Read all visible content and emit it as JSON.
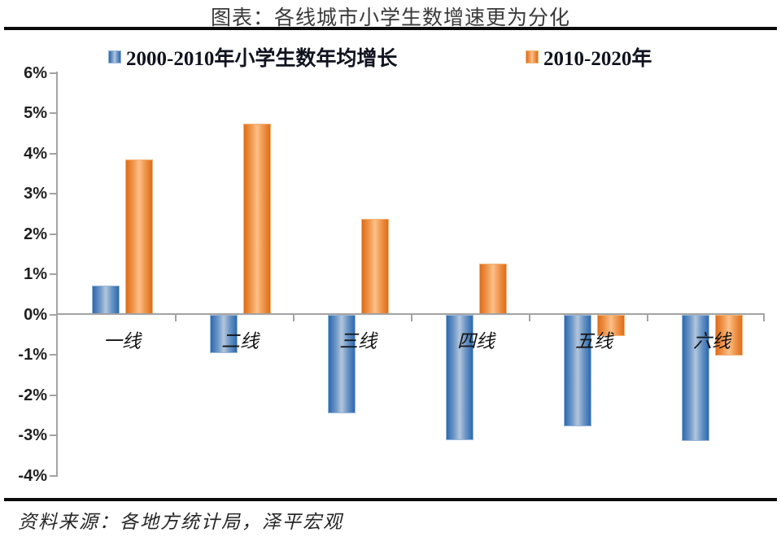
{
  "title": "图表：各线城市小学生数增速更为分化",
  "source": "资料来源：各地方统计局，泽平宏观",
  "legend": [
    {
      "label": "2000-2010年小学生数年均增长",
      "color": "#2c69b0"
    },
    {
      "label": "2010-2020年",
      "color": "#dd6d1a"
    }
  ],
  "colors": {
    "blue_edge": "#2c69b0",
    "blue_center": "#b3c6dc",
    "orange_edge": "#dd6d1a",
    "orange_center": "#fcc08b",
    "axis_gray": "#a3a3a3",
    "divider_black": "#0b0b0b"
  },
  "chart_data": {
    "type": "bar",
    "title": "图表：各线城市小学生数增速更为分化",
    "categories": [
      "一线",
      "二线",
      "三线",
      "四线",
      "五线",
      "六线"
    ],
    "series": [
      {
        "name": "2000-2010年小学生数年均增长",
        "color": "#2c69b0",
        "values": [
          0.73,
          -0.95,
          -2.45,
          -3.12,
          -2.76,
          -3.13
        ]
      },
      {
        "name": "2010-2020年",
        "color": "#dd6d1a",
        "values": [
          3.85,
          4.74,
          2.38,
          1.28,
          -0.53,
          -1.0
        ]
      }
    ],
    "xlabel": "",
    "ylabel": "",
    "ylim": [
      -4,
      6
    ],
    "yticks": [
      6,
      5,
      4,
      3,
      2,
      1,
      0,
      -1,
      -2,
      -3,
      -4
    ],
    "ytick_labels": [
      "6%",
      "5%",
      "4%",
      "3%",
      "2%",
      "1%",
      "0%",
      "-1%",
      "-2%",
      "-3%",
      "-4%"
    ],
    "grid": false,
    "legend_position": "top"
  }
}
